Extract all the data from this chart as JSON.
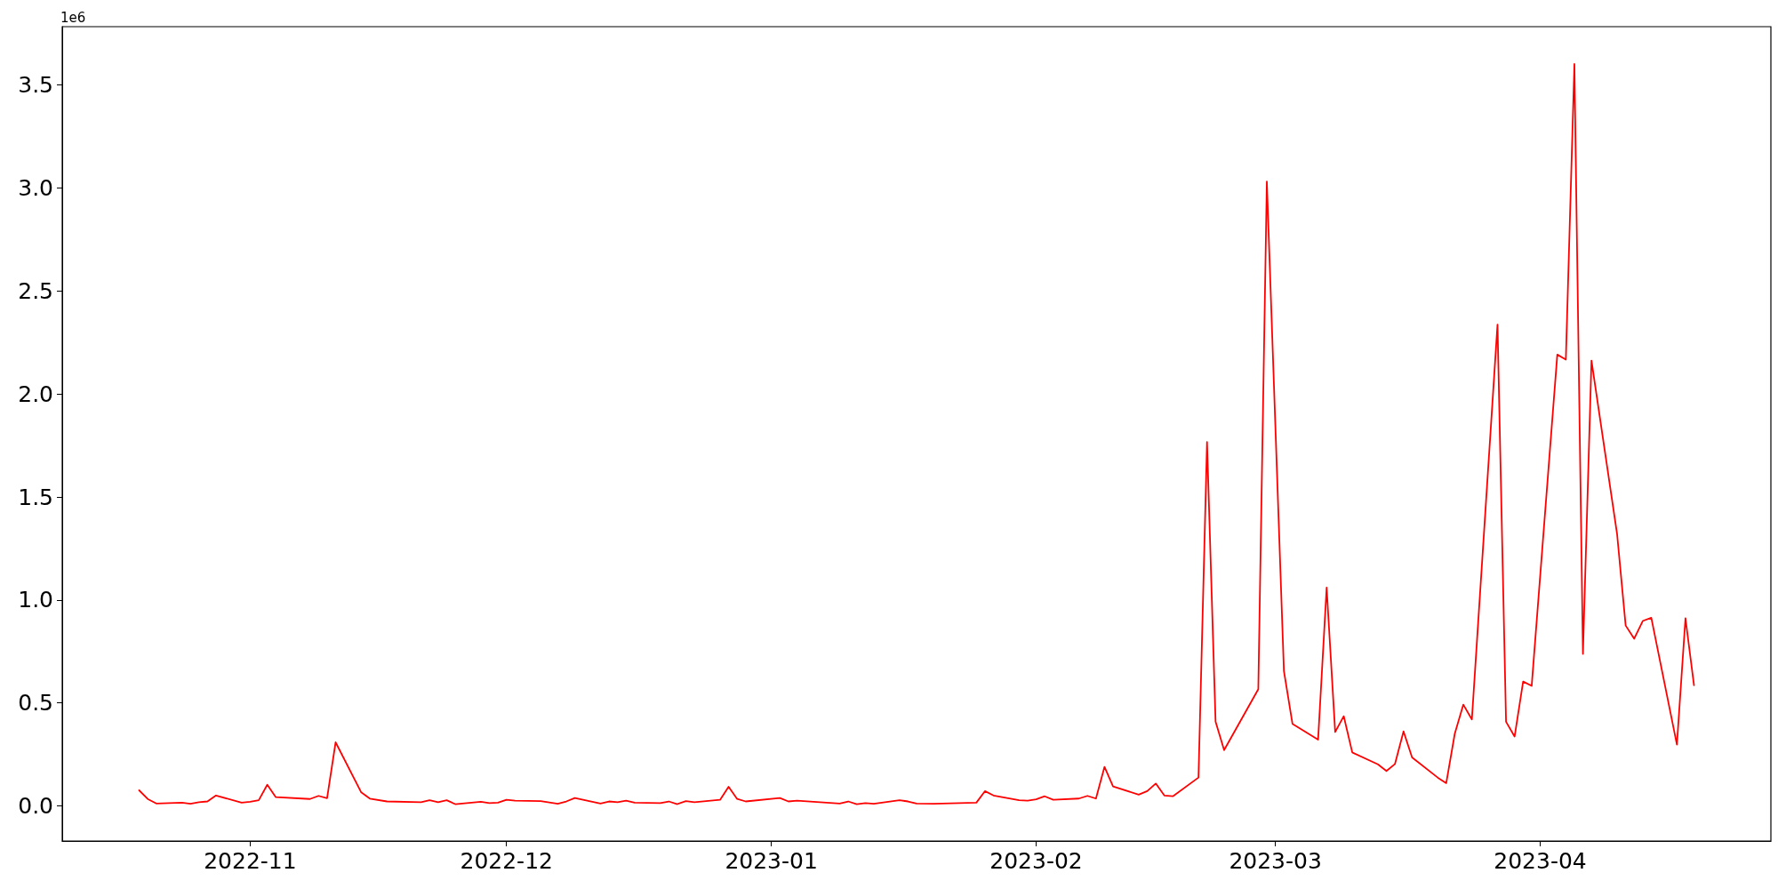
{
  "chart_data": {
    "type": "line",
    "x": [
      "2022-10-19",
      "2022-10-20",
      "2022-10-21",
      "2022-10-24",
      "2022-10-25",
      "2022-10-26",
      "2022-10-27",
      "2022-10-28",
      "2022-10-31",
      "2022-11-01",
      "2022-11-02",
      "2022-11-03",
      "2022-11-04",
      "2022-11-08",
      "2022-11-09",
      "2022-11-10",
      "2022-11-11",
      "2022-11-14",
      "2022-11-15",
      "2022-11-17",
      "2022-11-21",
      "2022-11-22",
      "2022-11-23",
      "2022-11-24",
      "2022-11-25",
      "2022-11-28",
      "2022-11-29",
      "2022-11-30",
      "2022-12-01",
      "2022-12-02",
      "2022-12-05",
      "2022-12-07",
      "2022-12-08",
      "2022-12-09",
      "2022-12-12",
      "2022-12-13",
      "2022-12-14",
      "2022-12-15",
      "2022-12-16",
      "2022-12-19",
      "2022-12-20",
      "2022-12-21",
      "2022-12-22",
      "2022-12-23",
      "2022-12-26",
      "2022-12-27",
      "2022-12-28",
      "2022-12-29",
      "2023-01-02",
      "2023-01-03",
      "2023-01-04",
      "2023-01-09",
      "2023-01-10",
      "2023-01-11",
      "2023-01-12",
      "2023-01-13",
      "2023-01-16",
      "2023-01-17",
      "2023-01-18",
      "2023-01-20",
      "2023-01-25",
      "2023-01-26",
      "2023-01-27",
      "2023-01-30",
      "2023-01-31",
      "2023-02-01",
      "2023-02-02",
      "2023-02-03",
      "2023-02-06",
      "2023-02-07",
      "2023-02-08",
      "2023-02-09",
      "2023-02-10",
      "2023-02-13",
      "2023-02-14",
      "2023-02-15",
      "2023-02-16",
      "2023-02-17",
      "2023-02-20",
      "2023-02-21",
      "2023-02-22",
      "2023-02-23",
      "2023-02-27",
      "2023-02-28",
      "2023-03-02",
      "2023-03-03",
      "2023-03-06",
      "2023-03-07",
      "2023-03-08",
      "2023-03-09",
      "2023-03-10",
      "2023-03-13",
      "2023-03-14",
      "2023-03-15",
      "2023-03-16",
      "2023-03-17",
      "2023-03-20",
      "2023-03-21",
      "2023-03-22",
      "2023-03-23",
      "2023-03-24",
      "2023-03-27",
      "2023-03-28",
      "2023-03-29",
      "2023-03-30",
      "2023-03-31",
      "2023-04-03",
      "2023-04-04",
      "2023-04-05",
      "2023-04-06",
      "2023-04-07",
      "2023-04-10",
      "2023-04-11",
      "2023-04-12",
      "2023-04-13",
      "2023-04-14",
      "2023-04-17",
      "2023-04-18",
      "2023-04-19"
    ],
    "series": [
      {
        "color": "#ff0000",
        "values": [
          0.076,
          0.034,
          0.012,
          0.016,
          0.011,
          0.018,
          0.022,
          0.051,
          0.016,
          0.02,
          0.028,
          0.103,
          0.043,
          0.034,
          0.049,
          0.038,
          0.309,
          0.066,
          0.036,
          0.022,
          0.018,
          0.028,
          0.018,
          0.028,
          0.009,
          0.02,
          0.014,
          0.016,
          0.03,
          0.026,
          0.024,
          0.011,
          0.022,
          0.039,
          0.012,
          0.022,
          0.018,
          0.026,
          0.016,
          0.014,
          0.022,
          0.009,
          0.024,
          0.018,
          0.03,
          0.093,
          0.034,
          0.022,
          0.039,
          0.022,
          0.026,
          0.012,
          0.022,
          0.009,
          0.014,
          0.011,
          0.028,
          0.022,
          0.012,
          0.011,
          0.016,
          0.072,
          0.051,
          0.028,
          0.026,
          0.032,
          0.047,
          0.03,
          0.036,
          0.049,
          0.036,
          0.19,
          0.095,
          0.055,
          0.072,
          0.109,
          0.051,
          0.047,
          0.138,
          1.767,
          0.409,
          0.271,
          0.567,
          3.031,
          0.655,
          0.399,
          0.322,
          1.06,
          0.359,
          0.436,
          0.26,
          0.202,
          0.17,
          0.204,
          0.362,
          0.236,
          0.138,
          0.111,
          0.351,
          0.492,
          0.42,
          2.337,
          0.409,
          0.337,
          0.604,
          0.583,
          2.191,
          2.167,
          3.602,
          0.738,
          2.162,
          1.319,
          0.876,
          0.812,
          0.898,
          0.914,
          0.298,
          0.911,
          0.586
        ]
      }
    ],
    "xlim": [
      "2022-10-10",
      "2023-04-28"
    ],
    "xticks": [
      "2022-11",
      "2022-12",
      "2023-01",
      "2023-02",
      "2023-03",
      "2023-04"
    ],
    "ylim": [
      -0.17,
      3.783
    ],
    "yticks": [
      {
        "value": 0,
        "label": "0.0"
      },
      0.5,
      {
        "value": 1,
        "label": "1.0"
      },
      1.5,
      {
        "value": 2,
        "label": "2.0"
      },
      2.5,
      {
        "value": 3,
        "label": "3.0"
      },
      3.5
    ],
    "annotations": [
      "1e6"
    ],
    "grid": false,
    "marker": "none",
    "line_style": "solid"
  }
}
